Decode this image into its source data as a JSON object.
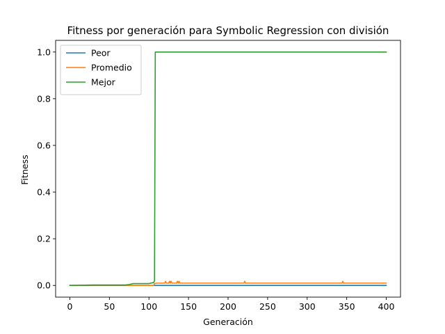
{
  "chart_data": {
    "type": "line",
    "title": "Fitness por generación para Symbolic Regression con división",
    "xlabel": "Generación",
    "ylabel": "Fitness",
    "xlim": [
      -18,
      418
    ],
    "ylim": [
      -0.05,
      1.05
    ],
    "xticks": [
      0,
      50,
      100,
      150,
      200,
      250,
      300,
      350,
      400
    ],
    "yticks": [
      0.0,
      0.2,
      0.4,
      0.6,
      0.8,
      1.0
    ],
    "xtick_labels": [
      "0",
      "50",
      "100",
      "150",
      "200",
      "250",
      "300",
      "350",
      "400"
    ],
    "ytick_labels": [
      "0.0",
      "0.2",
      "0.4",
      "0.6",
      "0.8",
      "1.0"
    ],
    "grid": false,
    "legend_position": "top-left",
    "series": [
      {
        "name": "Peor",
        "color": "#1f77b4",
        "x": [
          0,
          100,
          200,
          300,
          400
        ],
        "y": [
          0.0,
          0.0,
          0.0,
          0.0,
          0.0
        ]
      },
      {
        "name": "Promedio",
        "color": "#ff7f0e",
        "x": [
          0,
          30,
          70,
          75,
          106,
          107,
          110,
          120,
          121,
          122,
          125,
          126,
          127,
          128,
          129,
          135,
          136,
          137,
          138,
          139,
          140,
          150,
          220,
          221,
          222,
          223,
          250,
          344,
          345,
          346,
          347,
          400
        ],
        "y": [
          0.0,
          0.001,
          0.001,
          0.0,
          0.0,
          0.008,
          0.01,
          0.01,
          0.018,
          0.01,
          0.01,
          0.018,
          0.01,
          0.018,
          0.01,
          0.01,
          0.018,
          0.01,
          0.018,
          0.01,
          0.01,
          0.01,
          0.01,
          0.018,
          0.01,
          0.01,
          0.01,
          0.01,
          0.018,
          0.01,
          0.01,
          0.01
        ]
      },
      {
        "name": "Mejor",
        "color": "#2ca02c",
        "x": [
          0,
          30,
          70,
          75,
          80,
          100,
          105,
          106,
          107,
          108,
          120,
          200,
          300,
          400
        ],
        "y": [
          0.0,
          0.002,
          0.002,
          0.004,
          0.008,
          0.008,
          0.012,
          0.012,
          0.02,
          1.0,
          1.0,
          1.0,
          1.0,
          1.0
        ]
      }
    ]
  }
}
